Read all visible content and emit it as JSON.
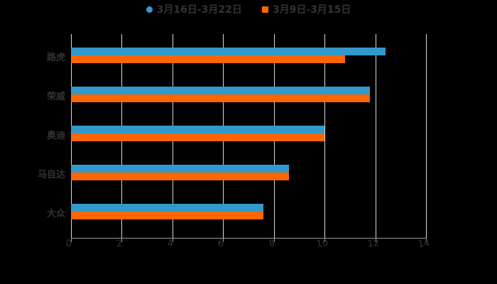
{
  "chart_data": {
    "type": "bar",
    "orientation": "horizontal",
    "title": "",
    "xlabel": "",
    "ylabel": "",
    "categories": [
      "路虎",
      "荣威",
      "奥迪",
      "马自达",
      "大众"
    ],
    "series": [
      {
        "name": "3月16日-3月22日",
        "color": "#3399cc",
        "values": [
          12.4,
          11.8,
          10.0,
          8.6,
          7.6
        ]
      },
      {
        "name": "3月9日-3月15日",
        "color": "#ff6600",
        "values": [
          10.8,
          11.8,
          10.0,
          8.6,
          7.6
        ]
      }
    ],
    "xlim": [
      0,
      14
    ],
    "xticks": [
      "0",
      "2",
      "4",
      "6",
      "8",
      "10",
      "12",
      "14"
    ],
    "grid": true,
    "legend_position": "top"
  },
  "legend": [
    {
      "label": "3月16日-3月22日",
      "color": "#3399cc",
      "marker": "circle"
    },
    {
      "label": "3月9日-3月15日",
      "color": "#ff6600",
      "marker": "square"
    }
  ]
}
